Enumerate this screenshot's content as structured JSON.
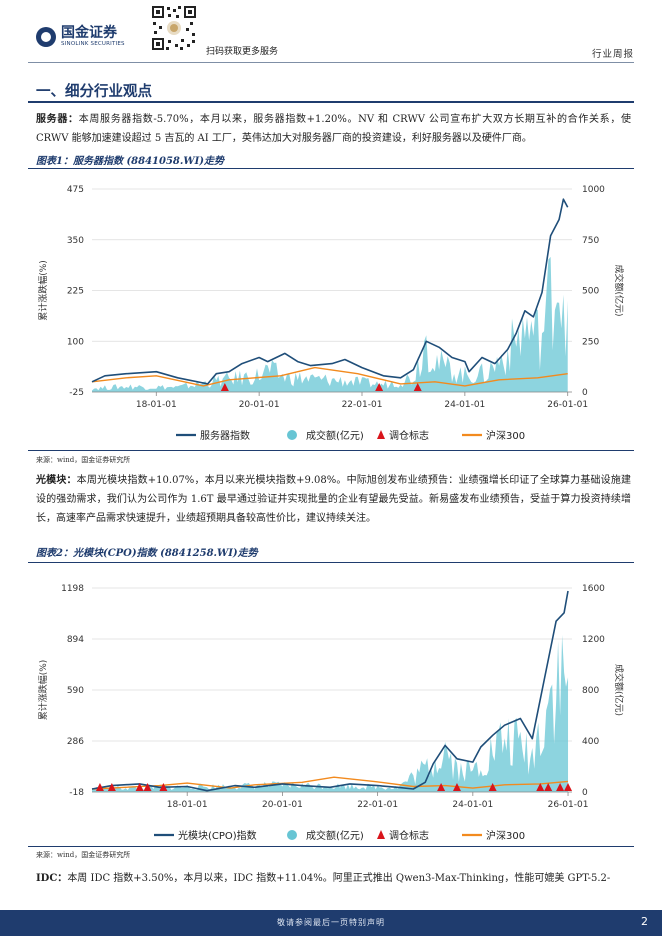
{
  "header": {
    "logo_cn": "国金证券",
    "logo_en": "SINOLINK SECURITIES",
    "qr_caption": "扫码获取更多服务",
    "report_type": "行业周报"
  },
  "section": {
    "title": "一、细分行业观点"
  },
  "paragraphs": {
    "server_lead": "服务器：",
    "server_text": "本周服务器指数-5.70%，本月以来，服务器指数+1.20%。NV 和 CRWV 公司宣布扩大双方长期互补的合作关系，使 CRWV 能够加速建设超过 5 吉瓦的 AI 工厂，英伟达加大对服务器厂商的投资建设，利好服务器以及硬件厂商。",
    "optical_lead": "光模块：",
    "optical_text": "本周光模块指数+10.07%，本月以来光模块指数+9.08%。中际旭创发布业绩预告：业绩强增长印证了全球算力基础设施建设的强劲需求，我们认为公司作为 1.6T 最早通过验证并实现批量的企业有望最先受益。新易盛发布业绩预告，受益于算力投资持续增长，高速率产品需求快速提升，业绩超预期具备较高性价比，建议持续关注。",
    "idc_lead": "IDC：",
    "idc_text": "本周 IDC 指数+3.50%，本月以来，IDC 指数+11.04%。阿里正式推出 Qwen3-Max-Thinking，性能可媲美 GPT-5.2-"
  },
  "figures": {
    "fig1_title": "图表1：服务器指数 (8841058.WI)走势",
    "fig2_title": "图表2：光模块(CPO)指数 (8841258.WI)走势",
    "source1": "来源：wind，国金证券研究所",
    "source2": "来源：wind，国金证券研究所"
  },
  "chart_data": [
    {
      "type": "line",
      "title": "图表1：服务器指数 (8841058.WI)走势",
      "ylabel": "累计涨跌幅(%)",
      "y2label": "成交额(亿元)",
      "ylim": [
        -25,
        475
      ],
      "y2lim": [
        0,
        1000
      ],
      "yticks": [
        "475",
        "350",
        "225",
        "100",
        "-25"
      ],
      "y2ticks": [
        "1000",
        "750",
        "500",
        "250",
        "0"
      ],
      "x_tick_labels": [
        "18-01-01",
        "20-01-01",
        "22-01-01",
        "24-01-01",
        "26-01-01"
      ],
      "x_start": "2016-10",
      "x_end": "2026-02",
      "colors": {
        "index": "#1f4e79",
        "volume": "#67c5d4",
        "adjust": "#d9141b",
        "hs300": "#f28a1e"
      },
      "series": [
        {
          "name": "服务器指数",
          "axis": "left",
          "points": [
            [
              "2016-10",
              0
            ],
            [
              "2017-01",
              15
            ],
            [
              "2017-06",
              20
            ],
            [
              "2018-01",
              25
            ],
            [
              "2018-06",
              10
            ],
            [
              "2019-01",
              -5
            ],
            [
              "2019-03",
              20
            ],
            [
              "2019-06",
              25
            ],
            [
              "2019-09",
              45
            ],
            [
              "2020-01",
              60
            ],
            [
              "2020-03",
              50
            ],
            [
              "2020-07",
              70
            ],
            [
              "2020-10",
              50
            ],
            [
              "2021-01",
              40
            ],
            [
              "2021-06",
              45
            ],
            [
              "2021-09",
              55
            ],
            [
              "2022-01",
              35
            ],
            [
              "2022-06",
              15
            ],
            [
              "2022-10",
              10
            ],
            [
              "2023-01",
              30
            ],
            [
              "2023-04",
              100
            ],
            [
              "2023-07",
              85
            ],
            [
              "2023-10",
              60
            ],
            [
              "2024-01",
              50
            ],
            [
              "2024-02",
              25
            ],
            [
              "2024-05",
              60
            ],
            [
              "2024-08",
              45
            ],
            [
              "2024-11",
              80
            ],
            [
              "2025-01",
              120
            ],
            [
              "2025-03",
              175
            ],
            [
              "2025-05",
              160
            ],
            [
              "2025-07",
              220
            ],
            [
              "2025-09",
              360
            ],
            [
              "2025-11",
              400
            ],
            [
              "2025-12",
              450
            ],
            [
              "2026-01",
              430
            ]
          ]
        },
        {
          "name": "成交额(亿元)",
          "axis": "right",
          "points": [
            [
              "2016-10",
              20
            ],
            [
              "2017-06",
              30
            ],
            [
              "2018-06",
              25
            ],
            [
              "2019-03",
              60
            ],
            [
              "2020-01",
              90
            ],
            [
              "2020-03",
              120
            ],
            [
              "2020-07",
              80
            ],
            [
              "2021-01",
              70
            ],
            [
              "2021-09",
              60
            ],
            [
              "2022-06",
              40
            ],
            [
              "2023-01",
              80
            ],
            [
              "2023-04",
              300
            ],
            [
              "2023-07",
              150
            ],
            [
              "2024-01",
              90
            ],
            [
              "2024-06",
              100
            ],
            [
              "2024-11",
              220
            ],
            [
              "2025-03",
              350
            ],
            [
              "2025-07",
              300
            ],
            [
              "2025-09",
              550
            ],
            [
              "2025-11",
              650
            ],
            [
              "2026-01",
              450
            ]
          ]
        },
        {
          "name": "沪深300",
          "axis": "left",
          "points": [
            [
              "2016-10",
              0
            ],
            [
              "2017-06",
              10
            ],
            [
              "2018-01",
              15
            ],
            [
              "2018-12",
              -10
            ],
            [
              "2019-06",
              5
            ],
            [
              "2020-06",
              15
            ],
            [
              "2021-02",
              35
            ],
            [
              "2021-12",
              20
            ],
            [
              "2022-10",
              -5
            ],
            [
              "2023-06",
              0
            ],
            [
              "2024-01",
              -10
            ],
            [
              "2024-09",
              5
            ],
            [
              "2025-06",
              10
            ],
            [
              "2026-01",
              20
            ]
          ]
        }
      ],
      "markers": {
        "name": "调仓标志",
        "dates": [
          "2019-05",
          "2022-05",
          "2023-02"
        ]
      }
    },
    {
      "type": "line",
      "title": "图表2：光模块(CPO)指数 (8841258.WI)走势",
      "ylabel": "累计涨跌幅(%)",
      "y2label": "成交额(亿元)",
      "ylim": [
        -18,
        1198
      ],
      "y2lim": [
        0,
        1600
      ],
      "yticks": [
        "1198",
        "894",
        "590",
        "286",
        "-18"
      ],
      "y2ticks": [
        "1600",
        "1200",
        "800",
        "400",
        "0"
      ],
      "x_tick_labels": [
        "18-01-01",
        "20-01-01",
        "22-01-01",
        "24-01-01",
        "26-01-01"
      ],
      "x_start": "2016-01",
      "x_end": "2026-02",
      "colors": {
        "index": "#1f4e79",
        "volume": "#67c5d4",
        "adjust": "#d9141b",
        "hs300": "#f28a1e"
      },
      "series": [
        {
          "name": "光模块(CPO)指数",
          "axis": "left",
          "points": [
            [
              "2016-01",
              0
            ],
            [
              "2016-06",
              20
            ],
            [
              "2017-01",
              30
            ],
            [
              "2017-06",
              10
            ],
            [
              "2018-01",
              15
            ],
            [
              "2018-06",
              -10
            ],
            [
              "2019-01",
              20
            ],
            [
              "2019-06",
              10
            ],
            [
              "2020-01",
              30
            ],
            [
              "2020-06",
              20
            ],
            [
              "2021-01",
              10
            ],
            [
              "2021-06",
              30
            ],
            [
              "2022-01",
              20
            ],
            [
              "2022-06",
              10
            ],
            [
              "2022-10",
              0
            ],
            [
              "2023-01",
              40
            ],
            [
              "2023-03",
              150
            ],
            [
              "2023-06",
              260
            ],
            [
              "2023-09",
              180
            ],
            [
              "2024-01",
              160
            ],
            [
              "2024-03",
              250
            ],
            [
              "2024-06",
              320
            ],
            [
              "2024-09",
              380
            ],
            [
              "2025-01",
              420
            ],
            [
              "2025-04",
              300
            ],
            [
              "2025-07",
              650
            ],
            [
              "2025-10",
              1000
            ],
            [
              "2025-12",
              1050
            ],
            [
              "2026-01",
              1180
            ]
          ]
        },
        {
          "name": "成交额(亿元)",
          "axis": "right",
          "points": [
            [
              "2016-01",
              30
            ],
            [
              "2017-06",
              40
            ],
            [
              "2019-01",
              50
            ],
            [
              "2020-01",
              60
            ],
            [
              "2021-06",
              50
            ],
            [
              "2022-06",
              40
            ],
            [
              "2023-03",
              250
            ],
            [
              "2023-06",
              400
            ],
            [
              "2023-09",
              200
            ],
            [
              "2024-01",
              180
            ],
            [
              "2024-06",
              350
            ],
            [
              "2024-09",
              450
            ],
            [
              "2025-01",
              400
            ],
            [
              "2025-04",
              300
            ],
            [
              "2025-07",
              700
            ],
            [
              "2025-10",
              1000
            ],
            [
              "2026-01",
              900
            ]
          ]
        },
        {
          "name": "沪深300",
          "axis": "left",
          "points": [
            [
              "2016-01",
              0
            ],
            [
              "2017-06",
              20
            ],
            [
              "2018-01",
              35
            ],
            [
              "2018-12",
              5
            ],
            [
              "2019-06",
              25
            ],
            [
              "2020-06",
              40
            ],
            [
              "2021-02",
              70
            ],
            [
              "2021-12",
              45
            ],
            [
              "2022-10",
              15
            ],
            [
              "2023-06",
              20
            ],
            [
              "2024-01",
              5
            ],
            [
              "2024-09",
              25
            ],
            [
              "2025-06",
              30
            ],
            [
              "2026-01",
              45
            ]
          ]
        }
      ],
      "markers": {
        "name": "调仓标志",
        "dates": [
          "2016-03",
          "2016-06",
          "2017-01",
          "2017-03",
          "2017-07",
          "2023-05",
          "2023-09",
          "2024-06",
          "2025-06",
          "2025-08",
          "2025-11",
          "2026-01"
        ]
      }
    }
  ],
  "footer": {
    "disclaimer": "敬请参阅最后一页特别声明",
    "page": "2"
  }
}
